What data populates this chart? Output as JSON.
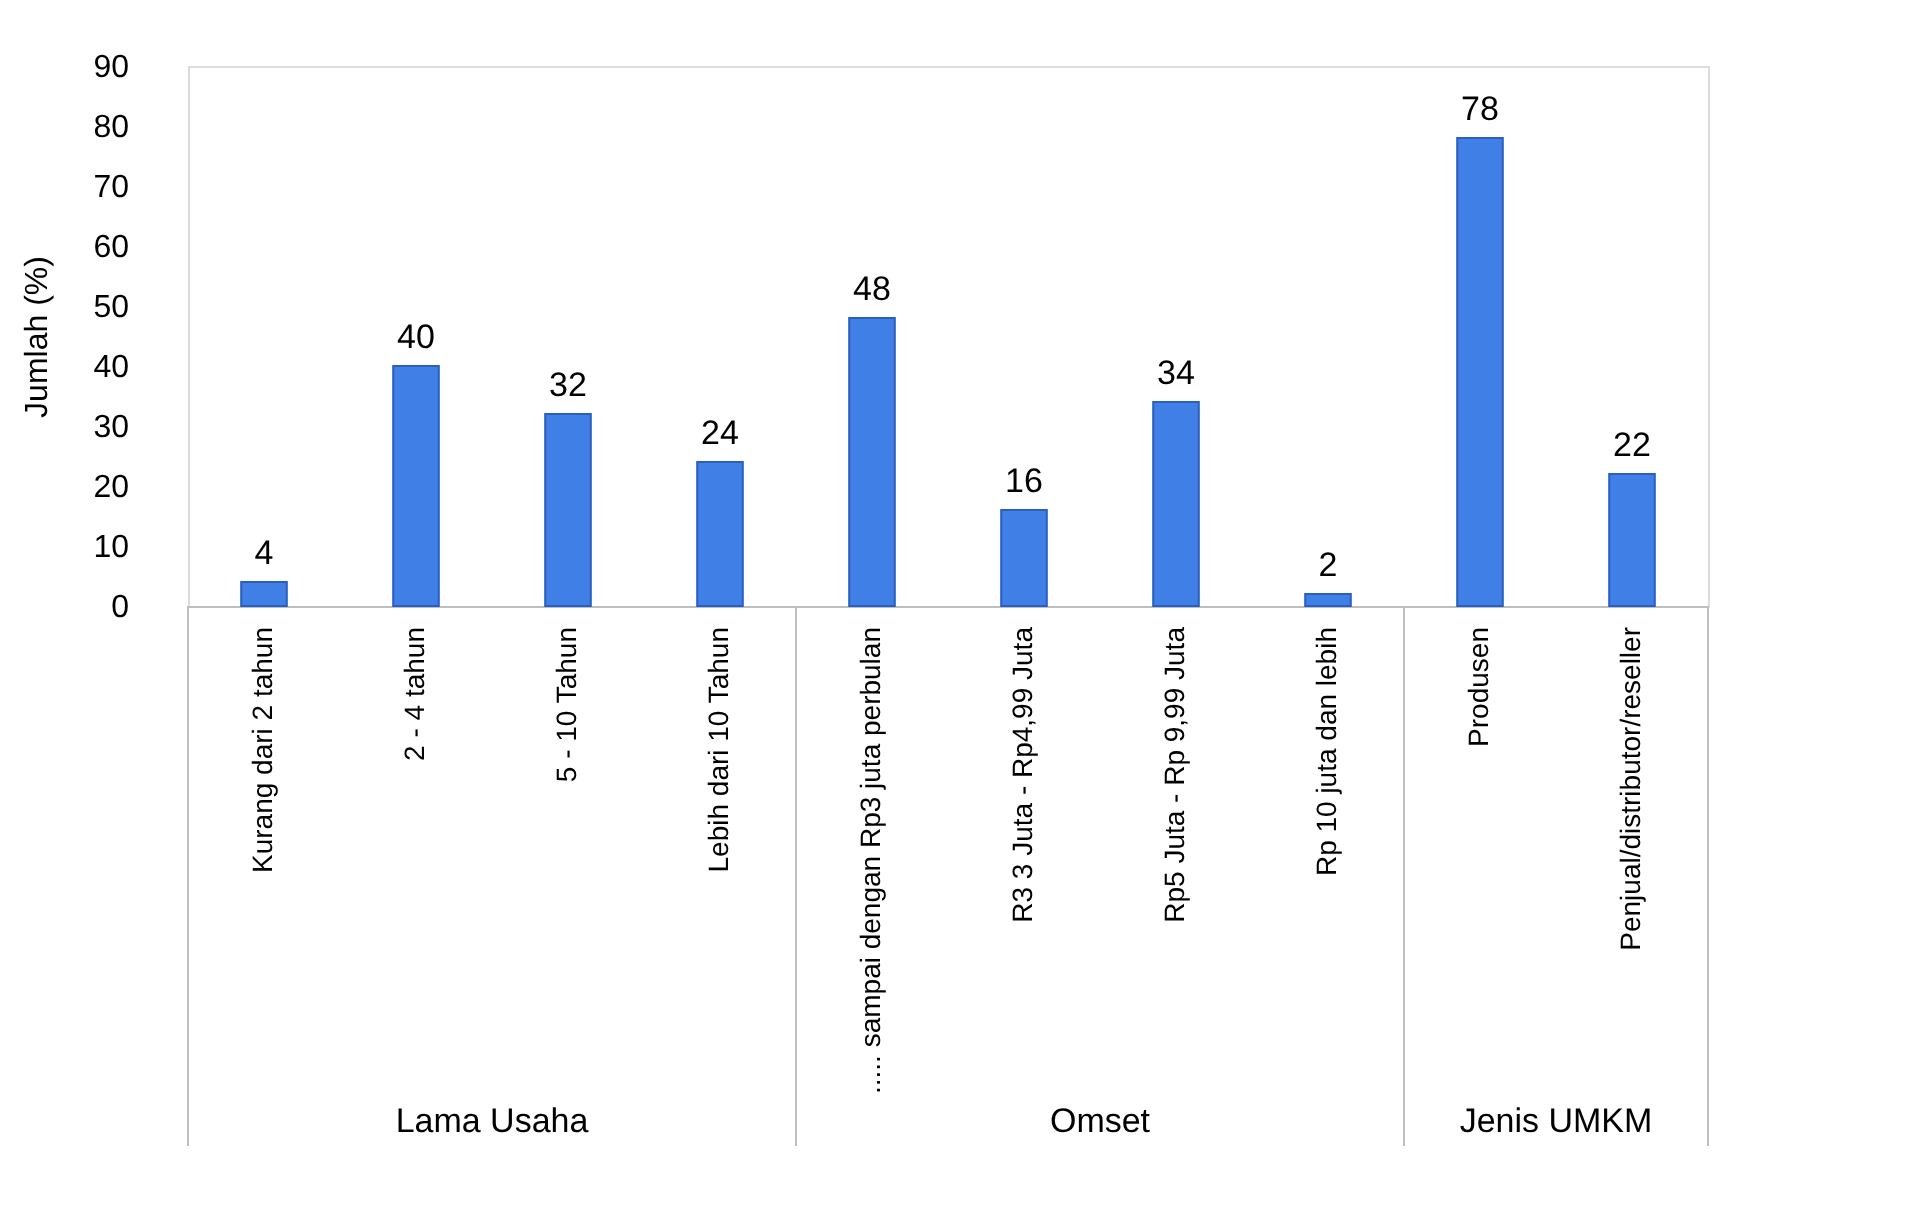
{
  "chart_data": {
    "type": "bar",
    "ylabel": "Jumlah (%)",
    "categories": [
      "Kurang dari 2 tahun",
      "2 - 4 tahun",
      "5 - 10 Tahun",
      "Lebih dari 10 Tahun",
      "..... sampai dengan Rp3 juta perbulan",
      "R3 3 Juta - Rp4,99 Juta",
      "Rp5 Juta - Rp 9,99 Juta",
      "Rp 10 juta dan lebih",
      "Produsen",
      "Penjual/distributor/reseller"
    ],
    "values": [
      4,
      40,
      32,
      24,
      48,
      16,
      34,
      2,
      78,
      22
    ],
    "color": "#3f7fe6",
    "ylim": [
      0,
      90
    ],
    "yticks": [
      0,
      10,
      20,
      30,
      40,
      50,
      60,
      70,
      80,
      90
    ],
    "data_labels": true,
    "grid": false,
    "annotations": [
      "Lama Usaha",
      "Omset",
      "Jenis UMKM"
    ]
  }
}
